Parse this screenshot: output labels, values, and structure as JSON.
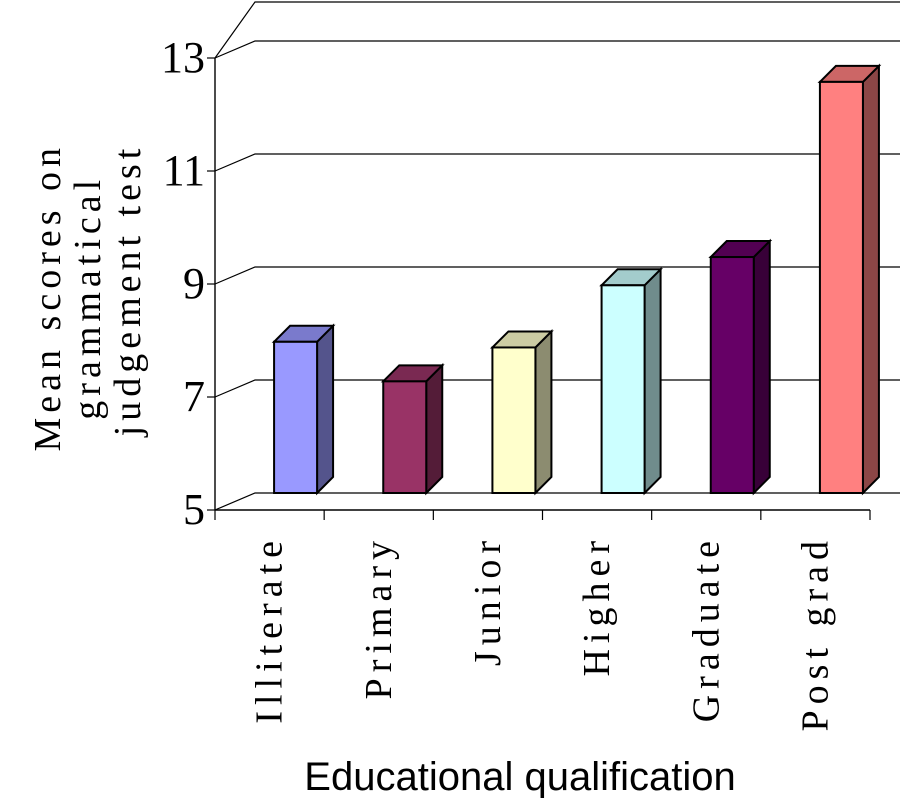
{
  "chart_data": {
    "type": "bar",
    "style": "3d-column",
    "categories": [
      "Illiterate",
      "Primary",
      "Junior",
      "Higher",
      "Graduate",
      "Post grad"
    ],
    "values": [
      7.8,
      7.1,
      7.7,
      8.8,
      9.3,
      12.4
    ],
    "colors": [
      "#9999ff",
      "#993366",
      "#ffffcc",
      "#ccffff",
      "#660066",
      "#ff8080"
    ],
    "ylabel_lines": [
      "Mean scores on",
      "grammatical",
      "judgement test"
    ],
    "xlabel": "Educational qualification",
    "ylim": [
      5,
      13
    ],
    "yticks": [
      5,
      7,
      9,
      11,
      13
    ],
    "grid": true,
    "legend": "none"
  }
}
